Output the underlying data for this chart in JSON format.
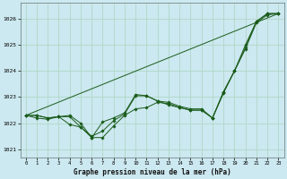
{
  "title": "Graphe pression niveau de la mer (hPa)",
  "bg_color": "#cce8f0",
  "grid_color": "#b0d8c8",
  "line_color": "#1a5c1a",
  "xlim": [
    -0.5,
    23.5
  ],
  "ylim": [
    1020.7,
    1026.6
  ],
  "yticks": [
    1021,
    1022,
    1023,
    1024,
    1025,
    1026
  ],
  "xticks": [
    0,
    1,
    2,
    3,
    4,
    5,
    6,
    7,
    8,
    9,
    10,
    11,
    12,
    13,
    14,
    15,
    16,
    17,
    18,
    19,
    20,
    21,
    22,
    23
  ],
  "series": [
    {
      "x": [
        0,
        1,
        2,
        3,
        4,
        5,
        6,
        7,
        8,
        9,
        10,
        11,
        12,
        13,
        14,
        15,
        16,
        17,
        18,
        19,
        20,
        21,
        22,
        23
      ],
      "y": [
        1022.3,
        1022.3,
        1022.2,
        1022.25,
        1022.25,
        1021.85,
        1021.5,
        1021.7,
        1022.1,
        1022.35,
        1023.05,
        1023.05,
        1022.85,
        1022.8,
        1022.65,
        1022.55,
        1022.55,
        1022.2,
        1023.2,
        1024.0,
        1024.9,
        1025.9,
        1026.2,
        1026.2
      ],
      "marker": true
    },
    {
      "x": [
        0,
        1,
        2,
        3,
        4,
        5,
        6,
        7,
        8,
        9,
        10,
        11,
        12,
        13,
        14,
        15,
        16,
        17,
        18,
        19,
        20,
        21,
        22,
        23
      ],
      "y": [
        1022.3,
        1022.2,
        1022.15,
        1022.25,
        1021.95,
        1021.85,
        1021.45,
        1021.45,
        1021.9,
        1022.3,
        1022.55,
        1022.6,
        1022.8,
        1022.75,
        1022.6,
        1022.5,
        1022.5,
        1022.2,
        1023.15,
        1024.0,
        1024.85,
        1025.85,
        1026.15,
        1026.2
      ],
      "marker": true
    },
    {
      "x": [
        0,
        1,
        2,
        3,
        4,
        5,
        6,
        7,
        8,
        9,
        10,
        11,
        12,
        13,
        14,
        15,
        16,
        17,
        18,
        19,
        20,
        21,
        22,
        23
      ],
      "y": [
        1022.3,
        1022.3,
        1022.2,
        1022.25,
        1022.3,
        1022.0,
        1021.45,
        1022.05,
        1022.2,
        1022.4,
        1023.1,
        1023.05,
        1022.85,
        1022.7,
        1022.6,
        1022.5,
        1022.5,
        1022.2,
        1023.2,
        1024.0,
        1025.0,
        1025.9,
        1026.2,
        1026.2
      ],
      "marker": true
    },
    {
      "x": [
        0,
        23
      ],
      "y": [
        1022.3,
        1026.2
      ],
      "marker": false
    }
  ]
}
